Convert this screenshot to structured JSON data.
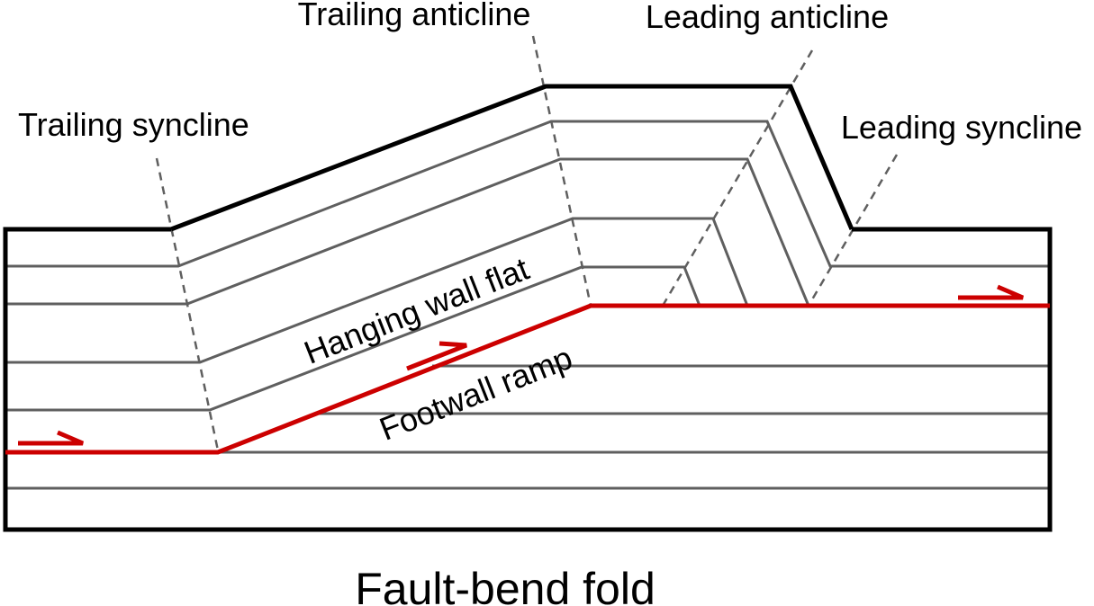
{
  "labels": {
    "trailing_anticline": "Trailing anticline",
    "leading_anticline": "Leading anticline",
    "trailing_syncline": "Trailing syncline",
    "leading_syncline": "Leading syncline",
    "hanging_wall_flat": "Hanging wall flat",
    "footwall_ramp": "Footwall ramp"
  },
  "title": "Fault-bend fold",
  "colors": {
    "outline": "#000000",
    "layers": "#5f5f5f",
    "fault": "#cc0000",
    "axial_trace": "#5f5f5f"
  }
}
